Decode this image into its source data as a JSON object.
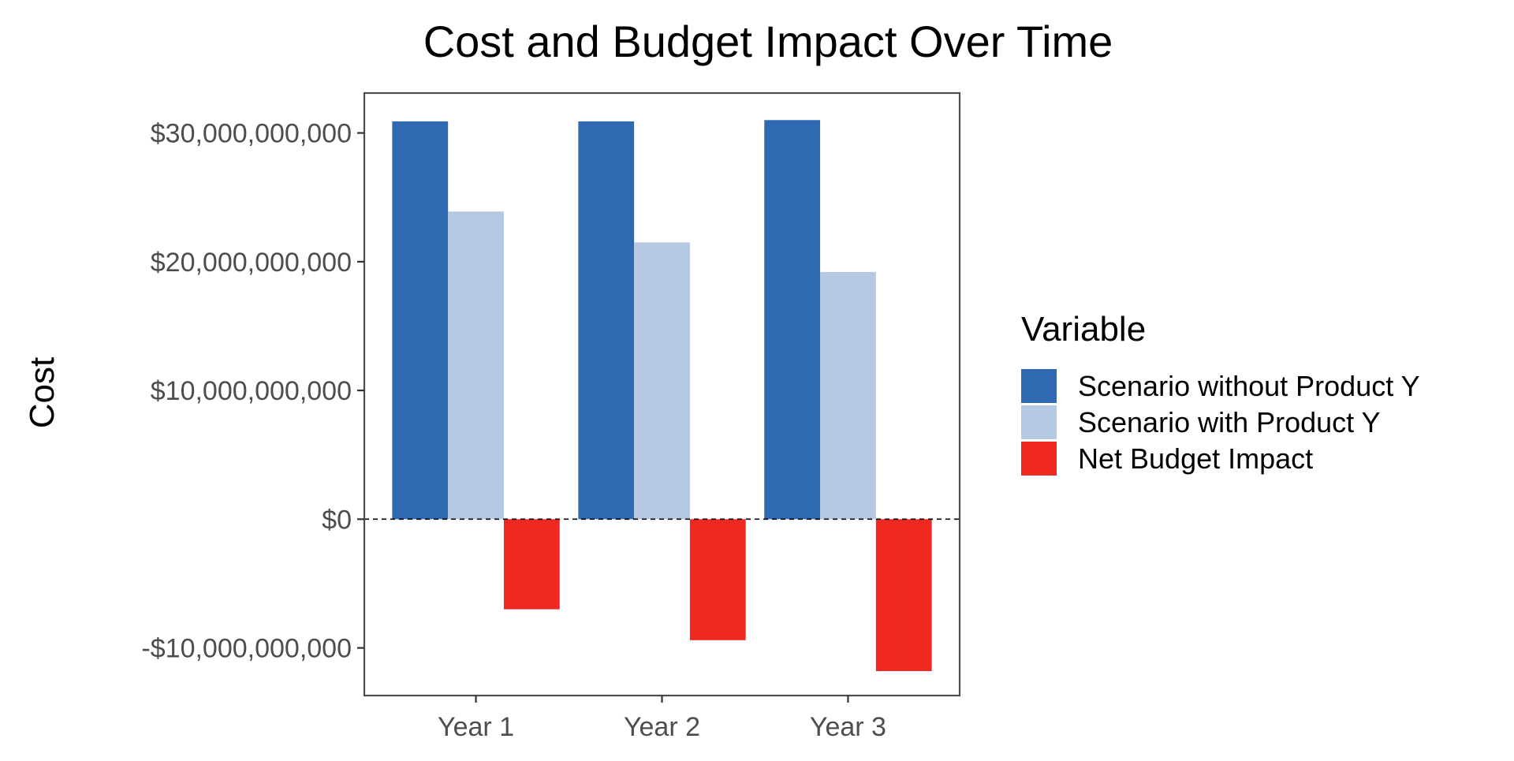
{
  "chart_data": {
    "type": "bar",
    "title": "Cost and Budget Impact Over Time",
    "xlabel": "",
    "ylabel": "Cost",
    "categories": [
      "Year 1",
      "Year 2",
      "Year 3"
    ],
    "ylim": [
      -13700000000,
      33100000000
    ],
    "yticks": [
      -10000000000,
      0,
      10000000000,
      20000000000,
      30000000000
    ],
    "ytick_labels": [
      "-$10,000,000,000",
      "$0",
      "$10,000,000,000",
      "$20,000,000,000",
      "$30,000,000,000"
    ],
    "reference_line": {
      "y": 0,
      "style": "dashed"
    },
    "grid": false,
    "legend": {
      "title": "Variable",
      "position": "right"
    },
    "series": [
      {
        "name": "Scenario without Product Y",
        "color": "#2e69b2",
        "values": [
          30900000000,
          30900000000,
          31000000000
        ]
      },
      {
        "name": "Scenario with Product Y",
        "color": "#b6c9e2",
        "values": [
          23900000000,
          21500000000,
          19200000000
        ]
      },
      {
        "name": "Net Budget Impact",
        "color": "#f02822",
        "values": [
          -7000000000,
          -9400000000,
          -11800000000
        ]
      }
    ]
  }
}
